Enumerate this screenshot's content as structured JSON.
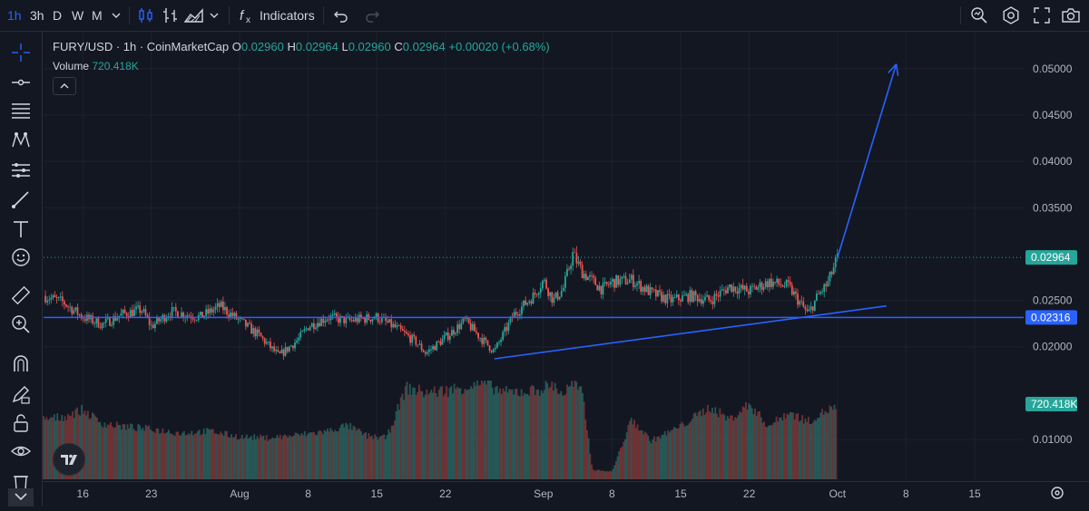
{
  "toolbar": {
    "intervals": [
      "1h",
      "3h",
      "D",
      "W",
      "M"
    ],
    "active_interval": "1h",
    "indicators_label": "Indicators"
  },
  "legend": {
    "symbol": "FURY/USD · 1h · CoinMarketCap",
    "o_label": "O",
    "o_value": "0.02960",
    "h_label": "H",
    "h_value": "0.02964",
    "l_label": "L",
    "l_value": "0.02960",
    "c_label": "C",
    "c_value": "0.02964",
    "change": "+0.00020 (+0.68%)",
    "volume_label": "Volume",
    "volume_value": "720.418K"
  },
  "colors": {
    "up": "#26a69a",
    "down": "#ef5350",
    "drawing": "#2962ff",
    "background": "#131722"
  },
  "chart_data": {
    "type": "candlestick",
    "ylim": [
      0.0055,
      0.054
    ],
    "y_ticks": [
      "0.05000",
      "0.04500",
      "0.04000",
      "0.03500",
      "0.02500",
      "0.02000",
      "0.01000"
    ],
    "y_tick_values": [
      0.05,
      0.045,
      0.04,
      0.035,
      0.025,
      0.02,
      0.01
    ],
    "x_ticks": [
      "16",
      "23",
      "Aug",
      "8",
      "15",
      "22",
      "Sep",
      "8",
      "15",
      "22",
      "Oct",
      "8",
      "15"
    ],
    "x_tick_dates": [
      "2024-07-16",
      "2024-07-23",
      "2024-08-01",
      "2024-08-08",
      "2024-08-15",
      "2024-08-22",
      "2024-09-01",
      "2024-09-08",
      "2024-09-15",
      "2024-09-22",
      "2024-10-01",
      "2024-10-08",
      "2024-10-15"
    ],
    "x_range": [
      "2024-07-12",
      "2024-10-20"
    ],
    "last_price": "0.02964",
    "last_price_value": 0.02964,
    "support_label": "0.02316",
    "support_value": 0.02316,
    "volume_label": "720.418K",
    "price_path": [
      [
        "2024-07-12",
        0.0255
      ],
      [
        "2024-07-14",
        0.0248
      ],
      [
        "2024-07-16",
        0.0232
      ],
      [
        "2024-07-18",
        0.0224
      ],
      [
        "2024-07-20",
        0.0235
      ],
      [
        "2024-07-22",
        0.024
      ],
      [
        "2024-07-23",
        0.0222
      ],
      [
        "2024-07-25",
        0.0238
      ],
      [
        "2024-07-28",
        0.0232
      ],
      [
        "2024-07-30",
        0.0244
      ],
      [
        "2024-08-01",
        0.0228
      ],
      [
        "2024-08-03",
        0.0212
      ],
      [
        "2024-08-05",
        0.019
      ],
      [
        "2024-08-07",
        0.0208
      ],
      [
        "2024-08-08",
        0.0222
      ],
      [
        "2024-08-10",
        0.0232
      ],
      [
        "2024-08-12",
        0.0228
      ],
      [
        "2024-08-15",
        0.0232
      ],
      [
        "2024-08-17",
        0.022
      ],
      [
        "2024-08-19",
        0.0205
      ],
      [
        "2024-08-20",
        0.0193
      ],
      [
        "2024-08-22",
        0.021
      ],
      [
        "2024-08-24",
        0.0228
      ],
      [
        "2024-08-26",
        0.0205
      ],
      [
        "2024-08-27",
        0.0195
      ],
      [
        "2024-08-29",
        0.0235
      ],
      [
        "2024-08-31",
        0.0255
      ],
      [
        "2024-09-01",
        0.0272
      ],
      [
        "2024-09-02",
        0.025
      ],
      [
        "2024-09-03",
        0.0262
      ],
      [
        "2024-09-04",
        0.03
      ],
      [
        "2024-09-05",
        0.028
      ],
      [
        "2024-09-07",
        0.0262
      ],
      [
        "2024-09-08",
        0.027
      ],
      [
        "2024-09-10",
        0.0272
      ],
      [
        "2024-09-12",
        0.0258
      ],
      [
        "2024-09-14",
        0.025
      ],
      [
        "2024-09-16",
        0.0255
      ],
      [
        "2024-09-18",
        0.025
      ],
      [
        "2024-09-20",
        0.0265
      ],
      [
        "2024-09-22",
        0.026
      ],
      [
        "2024-09-24",
        0.027
      ],
      [
        "2024-09-26",
        0.0265
      ],
      [
        "2024-09-28",
        0.0235
      ],
      [
        "2024-09-29",
        0.0255
      ],
      [
        "2024-09-30",
        0.0268
      ],
      [
        "2024-10-01",
        0.0296
      ]
    ],
    "volume_path": [
      [
        "2024-07-12",
        0.62
      ],
      [
        "2024-07-14",
        0.65
      ],
      [
        "2024-07-16",
        0.72
      ],
      [
        "2024-07-18",
        0.58
      ],
      [
        "2024-07-20",
        0.55
      ],
      [
        "2024-07-23",
        0.52
      ],
      [
        "2024-07-26",
        0.48
      ],
      [
        "2024-07-29",
        0.5
      ],
      [
        "2024-08-01",
        0.44
      ],
      [
        "2024-08-04",
        0.43
      ],
      [
        "2024-08-07",
        0.46
      ],
      [
        "2024-08-10",
        0.5
      ],
      [
        "2024-08-12",
        0.56
      ],
      [
        "2024-08-14",
        0.45
      ],
      [
        "2024-08-16",
        0.43
      ],
      [
        "2024-08-18",
        0.95
      ],
      [
        "2024-08-20",
        0.9
      ],
      [
        "2024-08-22",
        0.92
      ],
      [
        "2024-08-24",
        0.96
      ],
      [
        "2024-08-26",
        1.0
      ],
      [
        "2024-08-28",
        0.9
      ],
      [
        "2024-08-31",
        0.92
      ],
      [
        "2024-09-02",
        0.98
      ],
      [
        "2024-09-03",
        0.88
      ],
      [
        "2024-09-04",
        1.0
      ],
      [
        "2024-09-05",
        0.88
      ],
      [
        "2024-09-06",
        0.1
      ],
      [
        "2024-09-08",
        0.08
      ],
      [
        "2024-09-10",
        0.62
      ],
      [
        "2024-09-12",
        0.4
      ],
      [
        "2024-09-15",
        0.55
      ],
      [
        "2024-09-18",
        0.75
      ],
      [
        "2024-09-20",
        0.62
      ],
      [
        "2024-09-22",
        0.78
      ],
      [
        "2024-09-24",
        0.55
      ],
      [
        "2024-09-26",
        0.7
      ],
      [
        "2024-09-28",
        0.6
      ],
      [
        "2024-09-30",
        0.72
      ],
      [
        "2024-10-01",
        0.75
      ]
    ],
    "drawings": [
      {
        "kind": "trend-arrow",
        "from": [
          "2024-10-01",
          0.0296
        ],
        "to": [
          "2024-10-07",
          0.0505
        ]
      },
      {
        "kind": "trend-line",
        "from": [
          "2024-08-27",
          0.0187
        ],
        "to": [
          "2024-10-06",
          0.0244
        ]
      },
      {
        "kind": "horizontal-line",
        "value": 0.02316
      }
    ]
  }
}
